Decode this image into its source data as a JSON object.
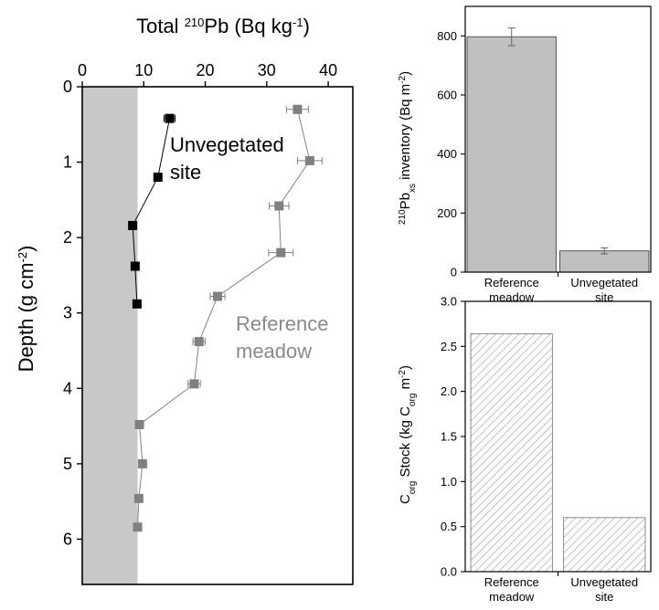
{
  "chart_data": [
    {
      "id": "profile",
      "type": "scatter",
      "title": "",
      "xlabel": "Total 210Pb (Bq kg-1)",
      "xlabel_parts": {
        "prefix": "Total ",
        "sup1": "210",
        "mid": "Pb (Bq kg",
        "sup2": "-1",
        "suffix": ")"
      },
      "ylabel": "Depth (g cm-2)",
      "ylabel_parts": {
        "prefix": "Depth (g cm",
        "sup": "-2",
        "suffix": ")"
      },
      "xlim": [
        0,
        44
      ],
      "ylim": [
        6.6,
        0
      ],
      "x_axis_position": "top",
      "y_inverted": true,
      "xticks": [
        0,
        10,
        20,
        30,
        40
      ],
      "yticks": [
        0,
        1,
        2,
        3,
        4,
        5,
        6
      ],
      "supported_band": {
        "x_from": 0,
        "x_to": 9,
        "color": "#c8c8c8"
      },
      "annotations": [
        {
          "text_lines": [
            "Unvegetated",
            "site"
          ],
          "color": "#000000"
        },
        {
          "text_lines": [
            "Reference",
            "meadow"
          ],
          "color": "#8a8a8a"
        }
      ],
      "series": [
        {
          "name": "Unvegetated site",
          "color": "#000000",
          "points": [
            {
              "x": 14.2,
              "y": 0.42,
              "xerr": 0.9
            },
            {
              "x": 12.3,
              "y": 1.2,
              "xerr": 0.5
            },
            {
              "x": 8.2,
              "y": 1.84,
              "xerr": 0.4
            },
            {
              "x": 8.6,
              "y": 2.38,
              "xerr": 0.4
            },
            {
              "x": 8.9,
              "y": 2.88,
              "xerr": 0.4
            }
          ]
        },
        {
          "name": "Reference meadow",
          "color": "#808080",
          "points": [
            {
              "x": 35.0,
              "y": 0.3,
              "xerr": 1.8
            },
            {
              "x": 37.0,
              "y": 0.98,
              "xerr": 2.0
            },
            {
              "x": 32.0,
              "y": 1.58,
              "xerr": 1.6
            },
            {
              "x": 32.3,
              "y": 2.2,
              "xerr": 2.0
            },
            {
              "x": 22.0,
              "y": 2.78,
              "xerr": 1.2
            },
            {
              "x": 19.0,
              "y": 3.38,
              "xerr": 1.0
            },
            {
              "x": 18.2,
              "y": 3.94,
              "xerr": 1.0
            },
            {
              "x": 9.3,
              "y": 4.48,
              "xerr": 0.4
            },
            {
              "x": 9.8,
              "y": 5.0,
              "xerr": 0.4
            },
            {
              "x": 9.2,
              "y": 5.46,
              "xerr": 0.4
            },
            {
              "x": 9.0,
              "y": 5.84,
              "xerr": 0.4
            }
          ]
        }
      ]
    },
    {
      "id": "inventory",
      "type": "bar",
      "title": "",
      "categories": [
        [
          "Reference",
          "meadow"
        ],
        [
          "Unvegetated",
          "site"
        ]
      ],
      "values": [
        797,
        72
      ],
      "errors": [
        30,
        10
      ],
      "bar_color": "#c0c0c0",
      "ylabel": "210Pbxs inventory (Bq m-2)",
      "ylabel_parts": {
        "sup1": "210",
        "base": "Pb",
        "sub": "xs",
        "mid": " inventory (Bq m",
        "sup2": "-2",
        "suffix": ")"
      },
      "ylim": [
        0,
        900
      ],
      "yticks": [
        0,
        200,
        400,
        600,
        800
      ]
    },
    {
      "id": "stock",
      "type": "bar",
      "title": "",
      "categories": [
        [
          "Reference",
          "meadow"
        ],
        [
          "Unvegetated",
          "site"
        ]
      ],
      "values": [
        2.64,
        0.6
      ],
      "pattern": "diagonal-hatch",
      "ylabel": "Corg Stock (kg Corg m-2)",
      "ylabel_parts": {
        "base": "C",
        "sub1": "org",
        "mid": " Stock (kg C",
        "sub2": "org",
        "mid2": " m",
        "sup": "-2",
        "suffix": ")"
      },
      "ylim": [
        0,
        3.0
      ],
      "yticks": [
        0.0,
        0.5,
        1.0,
        1.5,
        2.0,
        2.5,
        3.0
      ],
      "ytick_labels": [
        "0.0",
        "0.5",
        "1.0",
        "1.5",
        "2.0",
        "2.5",
        "3.0"
      ]
    }
  ]
}
